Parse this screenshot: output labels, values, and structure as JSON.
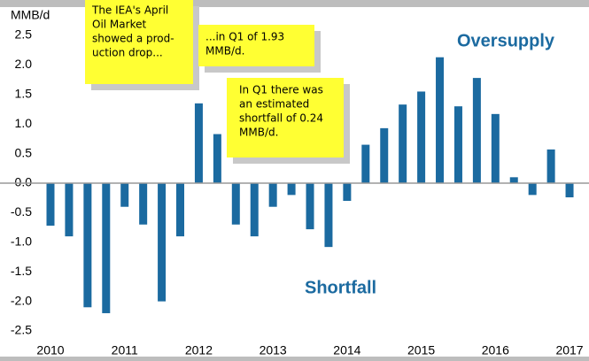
{
  "chart_data": {
    "type": "bar",
    "y_axis_label": "MMB/d",
    "categories": [
      "2010",
      null,
      null,
      null,
      "2011",
      null,
      null,
      null,
      "2012",
      null,
      null,
      null,
      "2013",
      null,
      null,
      null,
      "2014",
      null,
      null,
      null,
      "2015",
      null,
      null,
      null,
      "2016",
      null,
      null,
      null,
      "2017"
    ],
    "values": [
      -0.72,
      -0.9,
      -2.1,
      -2.2,
      -0.4,
      -0.7,
      -2.0,
      -0.9,
      1.35,
      0.83,
      -0.7,
      -0.9,
      -0.4,
      -0.2,
      -0.78,
      -1.08,
      -0.3,
      0.65,
      0.93,
      1.33,
      1.55,
      2.13,
      1.3,
      1.78,
      1.17,
      0.1,
      -0.2,
      0.57,
      -0.24
    ],
    "color": "#1b6aa0",
    "ylim": [
      -2.5,
      2.5
    ],
    "yticks": [
      {
        "value": 2.5,
        "label": "2.5"
      },
      {
        "value": 2.0,
        "label": "2.0"
      },
      {
        "value": 1.5,
        "label": "1.5"
      },
      {
        "value": 1.0,
        "label": "1.0"
      },
      {
        "value": 0.5,
        "label": "0.5"
      },
      {
        "value": 0.0,
        "label": "0.0"
      },
      {
        "value": -0.5,
        "label": "-0.5"
      },
      {
        "value": -1.0,
        "label": "-1.0"
      },
      {
        "value": -1.5,
        "label": "-1.5"
      },
      {
        "value": -2.0,
        "label": "-2.0"
      },
      {
        "value": -2.5,
        "label": "-2.5"
      }
    ],
    "region_labels": [
      "Oversupply",
      "Shortfall"
    ],
    "annotations": [
      {
        "lines": [
          "The IEA's April",
          "Oil Market",
          "showed a prod-",
          "uction drop..."
        ]
      },
      {
        "lines": [
          "...in Q1 of 1.93",
          "MMB/d."
        ]
      },
      {
        "lines": [
          "In Q1 there was",
          "an estimated",
          "shortfall of 0.24",
          "MMB/d."
        ]
      }
    ]
  }
}
